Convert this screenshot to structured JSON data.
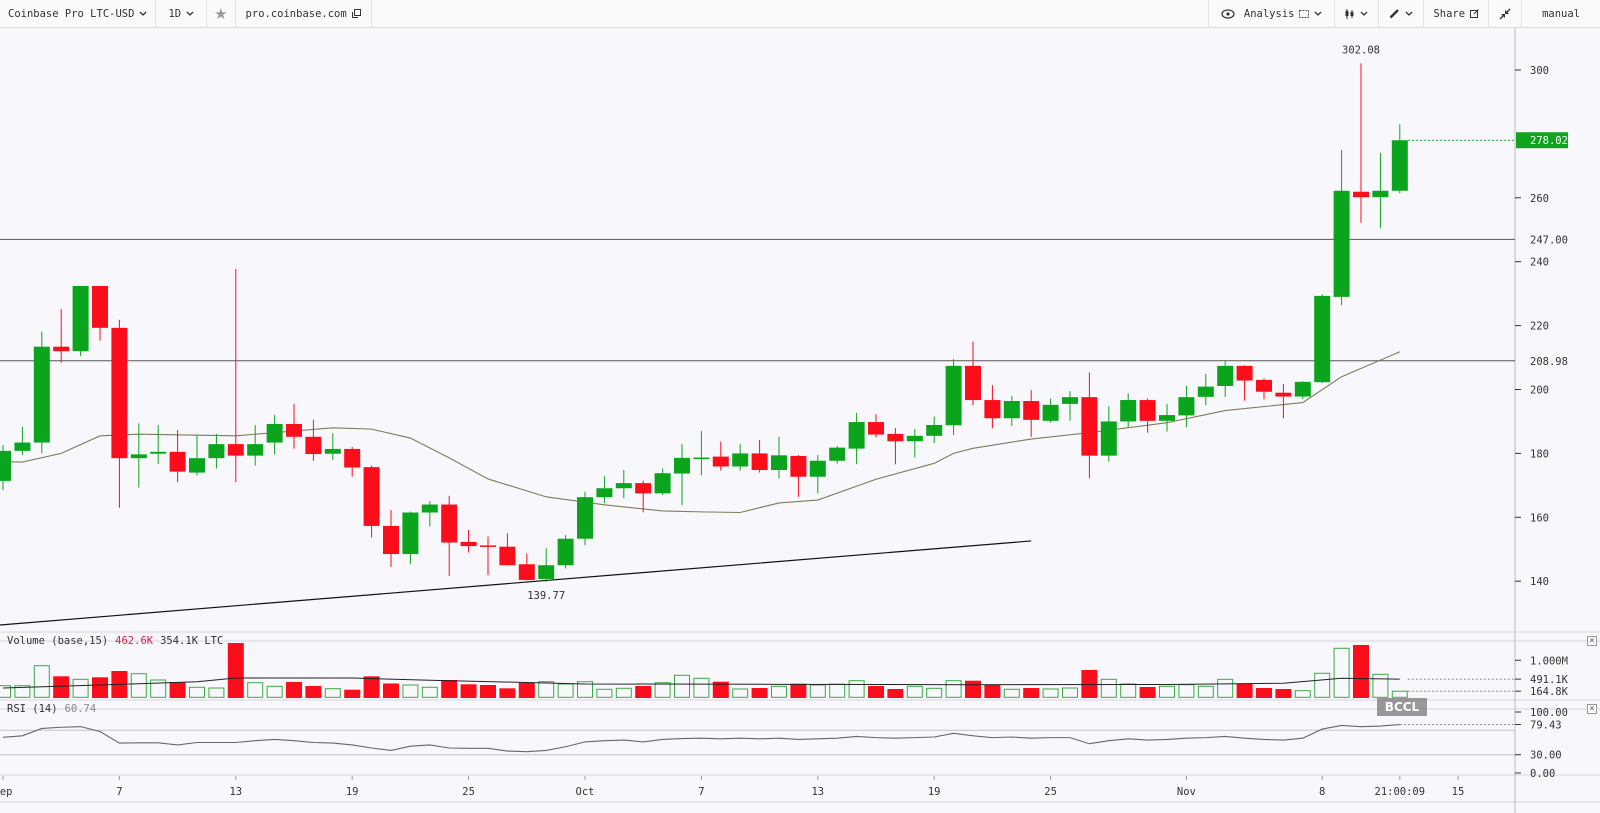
{
  "toolbar": {
    "symbol": "Coinbase Pro LTC-USD",
    "interval": "1D",
    "source": "pro.coinbase.com",
    "analysis": "Analysis",
    "share": "Share",
    "mode": "manual"
  },
  "icons": [
    "chevron-down-icon",
    "star-icon",
    "external-link-icon",
    "eye-icon",
    "indicators-icon",
    "candlestick-icon",
    "pencil-icon",
    "share-icon",
    "collapse-icon",
    "close-icon"
  ],
  "colors": {
    "up": "#0aa51c",
    "down": "#fb0d1c",
    "volume_up_outline": "#3aa845",
    "ma": "#7d7a5c",
    "hline": "#555555",
    "rsi": "#666666",
    "last_price_bg": "#13a41f"
  },
  "watermark": "BCCL",
  "chart_data": {
    "type": "candlestick",
    "x_ticks": [
      {
        "date": "Sep 1",
        "label": "Sep"
      },
      {
        "date": "Sep 7",
        "label": "7"
      },
      {
        "date": "Sep 13",
        "label": "13"
      },
      {
        "date": "Sep 19",
        "label": "19"
      },
      {
        "date": "Sep 25",
        "label": "25"
      },
      {
        "date": "Oct 1",
        "label": "Oct"
      },
      {
        "date": "Oct 7",
        "label": "7"
      },
      {
        "date": "Oct 13",
        "label": "13"
      },
      {
        "date": "Oct 19",
        "label": "19"
      },
      {
        "date": "Oct 25",
        "label": "25"
      },
      {
        "date": "Nov 1",
        "label": "Nov"
      },
      {
        "date": "Nov 8",
        "label": "8"
      },
      {
        "date": "Nov 12",
        "label": "21:00:09"
      },
      {
        "date": "Nov 15",
        "label": "15"
      }
    ],
    "y_ticks": [
      300,
      260,
      240,
      220,
      200,
      180,
      160,
      140
    ],
    "price": {
      "candle_fields": [
        "date",
        "open",
        "high",
        "low",
        "close"
      ],
      "candles": [
        [
          "Sep 1",
          171.4,
          182.6,
          168.5,
          180.8
        ],
        [
          "Sep 2",
          180.8,
          188.3,
          179.5,
          183.4
        ],
        [
          "Sep 3",
          183.4,
          218.1,
          180,
          213.4
        ],
        [
          "Sep 4",
          213.4,
          225.2,
          208.4,
          212
        ],
        [
          "Sep 5",
          212,
          232.4,
          210.5,
          232.4
        ],
        [
          "Sep 6",
          232.4,
          232.4,
          215.3,
          219.3
        ],
        [
          "Sep 7",
          219.3,
          221.8,
          163,
          178.5
        ],
        [
          "Sep 8",
          178.5,
          189.4,
          169.3,
          179.7
        ],
        [
          "Sep 9",
          179.9,
          188.9,
          176.7,
          180.5
        ],
        [
          "Sep 10",
          180.5,
          187.3,
          170.9,
          174.3
        ],
        [
          "Sep 11",
          174,
          185.8,
          173.1,
          178.5
        ],
        [
          "Sep 12",
          178.5,
          186.1,
          175.3,
          182.9
        ],
        [
          "Sep 13",
          182.9,
          237.7,
          170.9,
          179.3
        ],
        [
          "Sep 14",
          179.3,
          188.9,
          176.2,
          182.9
        ],
        [
          "Sep 15",
          183.4,
          192,
          179.7,
          189.2
        ],
        [
          "Sep 16",
          189.2,
          195.5,
          181.5,
          185.2
        ],
        [
          "Sep 17",
          185.2,
          190.5,
          177.6,
          179.8
        ],
        [
          "Sep 18",
          179.9,
          186.3,
          177.9,
          181.4
        ],
        [
          "Sep 19",
          181.4,
          182,
          172.7,
          175.6
        ],
        [
          "Sep 20",
          175.7,
          176.2,
          153.7,
          157.3
        ],
        [
          "Sep 21",
          157.3,
          162.3,
          144.5,
          148.5
        ],
        [
          "Sep 22",
          148.5,
          161.8,
          145.4,
          161.5
        ],
        [
          "Sep 23",
          161.5,
          165.1,
          157.1,
          164
        ],
        [
          "Sep 24",
          164,
          166.7,
          141.6,
          152.1
        ],
        [
          "Sep 25",
          152.3,
          156,
          149,
          151
        ],
        [
          "Sep 26",
          151.2,
          154,
          141.9,
          150.9
        ],
        [
          "Sep 27",
          150.8,
          155,
          145,
          145
        ],
        [
          "Sep 28",
          145.3,
          148.7,
          140.2,
          140.4
        ],
        [
          "Sep 29",
          140.7,
          150.3,
          139.77,
          145
        ],
        [
          "Sep 30",
          145,
          154.4,
          144,
          153.3
        ],
        [
          "Oct 1",
          153.3,
          168,
          151.3,
          166.3
        ],
        [
          "Oct 2",
          166.3,
          172.9,
          164.4,
          169.1
        ],
        [
          "Oct 3",
          169.1,
          174.8,
          165.9,
          170.7
        ],
        [
          "Oct 4",
          170.7,
          171.5,
          161.6,
          167.5
        ],
        [
          "Oct 5",
          167.5,
          175.3,
          167,
          173.8
        ],
        [
          "Oct 6",
          173.7,
          182.9,
          163.8,
          178.6
        ],
        [
          "Oct 7",
          178.5,
          187,
          173.2,
          178.7
        ],
        [
          "Oct 8",
          179,
          183.7,
          174.6,
          175.9
        ],
        [
          "Oct 9",
          175.9,
          182.9,
          174.6,
          180
        ],
        [
          "Oct 10",
          180,
          184.2,
          174,
          174.8
        ],
        [
          "Oct 11",
          174.8,
          185.2,
          172.2,
          179.4
        ],
        [
          "Oct 12",
          179.2,
          179.5,
          166.4,
          172.7
        ],
        [
          "Oct 13",
          172.7,
          179.5,
          167.5,
          177.7
        ],
        [
          "Oct 14",
          177.7,
          182.3,
          176.8,
          181.8
        ],
        [
          "Oct 15",
          181.5,
          192.7,
          176.6,
          189.8
        ],
        [
          "Oct 16",
          189.8,
          192.3,
          185,
          185.9
        ],
        [
          "Oct 17",
          186.1,
          187.9,
          176.6,
          183.8
        ],
        [
          "Oct 18",
          183.8,
          187.6,
          178.7,
          185.5
        ],
        [
          "Oct 19",
          185.5,
          191.5,
          183.2,
          188.9
        ],
        [
          "Oct 20",
          188.8,
          209.5,
          185.8,
          207.4
        ],
        [
          "Oct 21",
          207.4,
          215,
          195.1,
          196.7
        ],
        [
          "Oct 22",
          196.7,
          201.4,
          187.9,
          191
        ],
        [
          "Oct 23",
          191,
          198,
          188.6,
          196.4
        ],
        [
          "Oct 24",
          196.4,
          199.8,
          185.2,
          190.5
        ],
        [
          "Oct 25",
          190.2,
          197.2,
          189.6,
          195.2
        ],
        [
          "Oct 26",
          195.5,
          199.5,
          190.2,
          197.6
        ],
        [
          "Oct 27",
          197.6,
          205.3,
          172.2,
          179.3
        ],
        [
          "Oct 28",
          179.3,
          194.8,
          177.4,
          190
        ],
        [
          "Oct 29",
          190,
          198.8,
          188.2,
          196.7
        ],
        [
          "Oct 30",
          196.7,
          197.2,
          186.5,
          190.2
        ],
        [
          "Oct 31",
          190.2,
          195.5,
          186.8,
          192
        ],
        [
          "Nov 1",
          191.9,
          201.1,
          188.2,
          197.6
        ],
        [
          "Nov 2",
          197.7,
          204.9,
          195.1,
          200.9
        ],
        [
          "Nov 3",
          201.1,
          209.2,
          197.6,
          207.4
        ],
        [
          "Nov 4",
          207.4,
          207.6,
          196.5,
          202.8
        ],
        [
          "Nov 5",
          203,
          203.5,
          196.9,
          199.3
        ],
        [
          "Nov 6",
          199,
          201.7,
          191,
          197.8
        ],
        [
          "Nov 7",
          197.8,
          202.6,
          197,
          202.4
        ],
        [
          "Nov 8",
          202.3,
          229.8,
          202,
          229.3
        ],
        [
          "Nov 9",
          229,
          275,
          226.4,
          262.2
        ],
        [
          "Nov 10",
          261.9,
          302.08,
          252.2,
          260.2
        ],
        [
          "Nov 11",
          260.2,
          274.1,
          250.5,
          262.2
        ],
        [
          "Nov 12",
          262.2,
          283,
          261.4,
          278.02
        ]
      ],
      "moving_average": [
        [
          "Sep 1",
          177.4
        ],
        [
          "Sep 2",
          177.3
        ],
        [
          "Sep 4",
          180
        ],
        [
          "Sep 6",
          185.5
        ],
        [
          "Sep 8",
          186
        ],
        [
          "Sep 13",
          185.5
        ],
        [
          "Sep 15",
          186.5
        ],
        [
          "Sep 18",
          188
        ],
        [
          "Sep 20",
          187.6
        ],
        [
          "Sep 22",
          184.8
        ],
        [
          "Sep 24",
          178.6
        ],
        [
          "Sep 26",
          172
        ],
        [
          "Sep 29",
          166.4
        ],
        [
          "Oct 2",
          163.9
        ],
        [
          "Oct 5",
          162
        ],
        [
          "Oct 7",
          161.7
        ],
        [
          "Oct 9",
          161.5
        ],
        [
          "Oct 11",
          164.5
        ],
        [
          "Oct 13",
          165.4
        ],
        [
          "Oct 16",
          171.9
        ],
        [
          "Oct 19",
          176.9
        ],
        [
          "Oct 20",
          180
        ],
        [
          "Oct 21",
          181.6
        ],
        [
          "Oct 24",
          184.5
        ],
        [
          "Oct 27",
          186.5
        ],
        [
          "Oct 31",
          189.6
        ],
        [
          "Nov 3",
          193.4
        ],
        [
          "Nov 7",
          195.9
        ],
        [
          "Nov 9",
          204
        ],
        [
          "Nov 12",
          211.8
        ]
      ],
      "horizontal_lines": [
        {
          "value": 247.0,
          "label": "247.00"
        },
        {
          "value": 208.98,
          "label": "208.98"
        }
      ],
      "trendline": {
        "from": [
          "Sep 1",
          126.3
        ],
        "to": [
          "Oct 24",
          152.6
        ]
      },
      "high_label": {
        "date": "Nov 10",
        "value": 302.08,
        "label": "302.08"
      },
      "low_label": {
        "date": "Sep 29",
        "value": 139.77,
        "label": "139.77"
      },
      "last_price": {
        "value": 278.02,
        "label": "278.02"
      }
    },
    "volume": {
      "title": "Volume (base,15)",
      "value_1": "462.6K",
      "value_2": "354.1K LTC",
      "unit": "K",
      "values": [
        313,
        313,
        853,
        567,
        486,
        540,
        710,
        637,
        467,
        413,
        270,
        251,
        1466,
        394,
        297,
        413,
        305,
        232,
        205,
        567,
        373,
        332,
        270,
        467,
        351,
        332,
        243,
        394,
        421,
        359,
        421,
        216,
        243,
        305,
        394,
        594,
        513,
        421,
        224,
        251,
        297,
        367,
        332,
        355,
        448,
        305,
        224,
        297,
        243,
        448,
        448,
        332,
        216,
        251,
        224,
        251,
        737,
        486,
        359,
        278,
        297,
        340,
        297,
        486,
        359,
        251,
        224,
        178,
        648,
        1323,
        1412,
        621,
        164.8
      ],
      "moving_average": [
        [
          "Sep 1",
          250
        ],
        [
          "Sep 7",
          350
        ],
        [
          "Sep 11",
          420
        ],
        [
          "Sep 13",
          520
        ],
        [
          "Sep 19",
          520
        ],
        [
          "Sep 23",
          460
        ],
        [
          "Sep 28",
          400
        ],
        [
          "Oct 1",
          360
        ],
        [
          "Oct 11",
          350
        ],
        [
          "Oct 21",
          340
        ],
        [
          "Oct 31",
          345
        ],
        [
          "Nov 6",
          380
        ],
        [
          "Nov 9",
          513
        ],
        [
          "Nov 12",
          491.1
        ]
      ],
      "axis_labels": [
        {
          "value": 1000,
          "label": "1.000M"
        },
        {
          "value": 491.1,
          "label": "491.1K"
        },
        {
          "value": 164.8,
          "label": "164.8K"
        }
      ],
      "marker_values": [
        491.1,
        164.8
      ]
    },
    "rsi": {
      "title": "RSI (14)",
      "value": "60.74",
      "bands": [
        70,
        30
      ],
      "ylim": [
        0,
        100
      ],
      "values": [
        58.5,
        61,
        73,
        75,
        76,
        68,
        49,
        49.5,
        49.5,
        46,
        50,
        50,
        50,
        53,
        55,
        53,
        50,
        49,
        46,
        41,
        37,
        44,
        46,
        41,
        40.5,
        40.5,
        36,
        35,
        37,
        43,
        51,
        53,
        54,
        51,
        55,
        56.5,
        57,
        56,
        57,
        56,
        57,
        55,
        56,
        57,
        60,
        58,
        57,
        58,
        59,
        65,
        61,
        58,
        59,
        57,
        58,
        58,
        48,
        53,
        56,
        54,
        55,
        57,
        58,
        60,
        57,
        55,
        54,
        57,
        72,
        78,
        76,
        77,
        79.43
      ],
      "axis_labels": [
        {
          "value": 100,
          "label": "100.00"
        },
        {
          "value": 79.43,
          "label": "79.43"
        },
        {
          "value": 30,
          "label": "30.00"
        },
        {
          "value": 0,
          "label": "0.00"
        }
      ]
    }
  }
}
